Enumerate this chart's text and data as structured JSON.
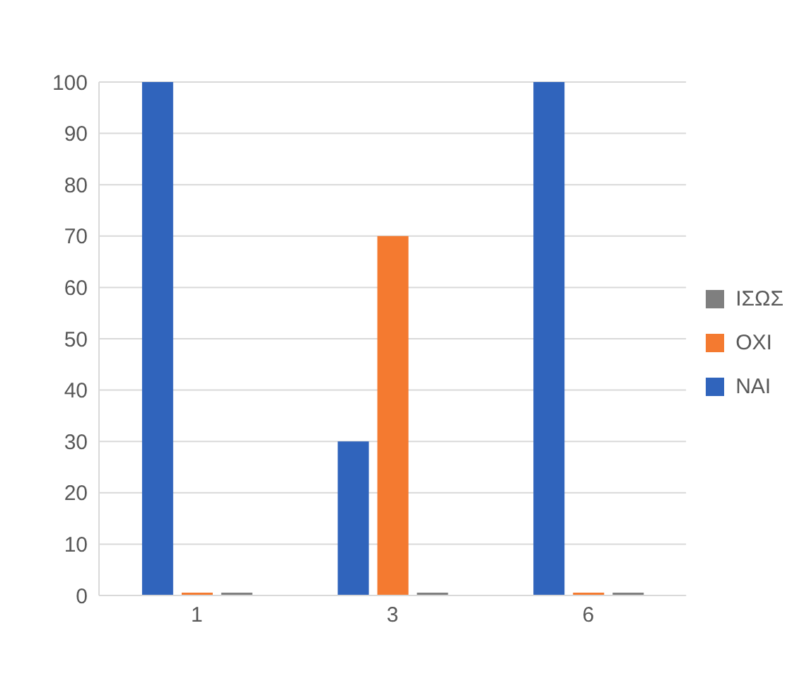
{
  "chart_data": {
    "type": "bar",
    "categories": [
      "1",
      "3",
      "6"
    ],
    "series": [
      {
        "name": "ΝΑΙ",
        "color": "#3064bc",
        "values": [
          100,
          30,
          100
        ]
      },
      {
        "name": "ΟΧΙ",
        "color": "#f47a30",
        "values": [
          0,
          70,
          0
        ]
      },
      {
        "name": "ΙΣΩΣ",
        "color": "#7f7f7f",
        "values": [
          0,
          0,
          0
        ]
      }
    ],
    "ylim": [
      0,
      100
    ],
    "yticks": [
      0,
      10,
      20,
      30,
      40,
      50,
      60,
      70,
      80,
      90,
      100
    ],
    "grid": "y",
    "legend": "right"
  }
}
